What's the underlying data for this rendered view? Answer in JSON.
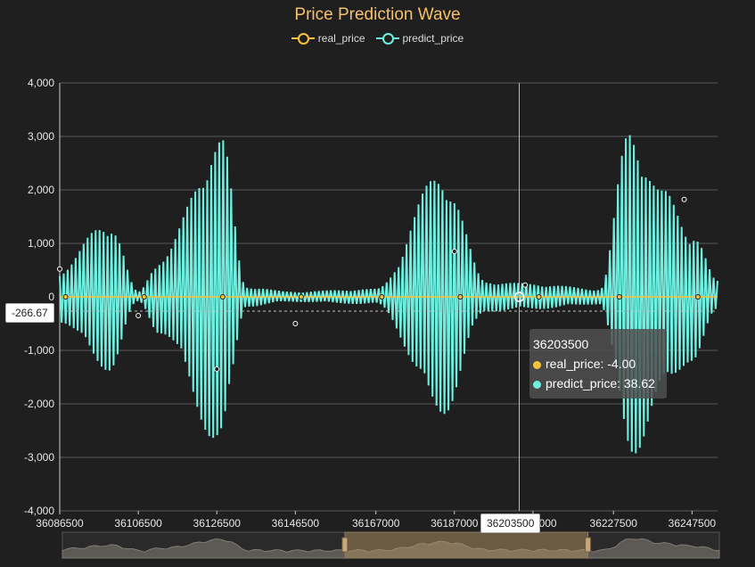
{
  "title": "Price Prediction Wave",
  "colors": {
    "background": "#1f1f1f",
    "real_price": "#f6c43a",
    "predict_price": "#6fefe0",
    "title": "#f7c06b",
    "grid": "#5a5a5a",
    "axis_text": "#e8e8e8"
  },
  "chart_data": {
    "type": "line",
    "title": "Price Prediction Wave",
    "legend": {
      "placement": "top-center",
      "items": [
        "real_price",
        "predict_price"
      ]
    },
    "y_axis": {
      "ylim": [
        -4000,
        4000
      ],
      "ticks": [
        4000,
        3000,
        2000,
        1000,
        0,
        -1000,
        -2000,
        -3000,
        -4000
      ],
      "tick_labels": [
        "4,000",
        "3,000",
        "2,000",
        "1,000",
        "0",
        "-1,000",
        "-2,000",
        "-3,000",
        "-4,000"
      ]
    },
    "x_axis": {
      "xlim": [
        36086500,
        36254000
      ],
      "tick_labels": [
        "36086500",
        "36106500",
        "36126500",
        "36146500",
        "36167000",
        "36187000",
        "36207000",
        "36227500",
        "36247500"
      ]
    },
    "grid": true,
    "series": [
      {
        "name": "real_price",
        "color": "#f6c43a",
        "description_values": [
          0,
          0,
          0,
          0,
          0,
          0,
          0,
          0,
          0
        ]
      },
      {
        "name": "predict_price",
        "color": "#6fefe0",
        "envelope_peaks": [
          {
            "x": 36086500,
            "y": 520
          },
          {
            "x": 36099000,
            "y": 1500
          },
          {
            "x": 36106500,
            "y": 100
          },
          {
            "x": 36112000,
            "y": 750
          },
          {
            "x": 36127500,
            "y": 3050
          },
          {
            "x": 36134000,
            "y": 200
          },
          {
            "x": 36145000,
            "y": 100
          },
          {
            "x": 36167000,
            "y": 150
          },
          {
            "x": 36184000,
            "y": 2400
          },
          {
            "x": 36195000,
            "y": 300
          },
          {
            "x": 36207000,
            "y": 250
          },
          {
            "x": 36224000,
            "y": 150
          },
          {
            "x": 36232000,
            "y": 3300
          },
          {
            "x": 36240000,
            "y": 2000
          },
          {
            "x": 36247500,
            "y": 1300
          },
          {
            "x": 36254000,
            "y": 300
          }
        ]
      }
    ],
    "crosshair": {
      "x_label": "36203500",
      "y_label": "-266.67"
    },
    "tooltip": {
      "header": "36203500",
      "items": [
        {
          "label": "real_price: -4.00",
          "color": "#f6c43a"
        },
        {
          "label": "predict_price: 38.62",
          "color": "#6fefe0"
        }
      ]
    },
    "data_zoom": {
      "start": 0.43,
      "end": 0.8
    }
  }
}
